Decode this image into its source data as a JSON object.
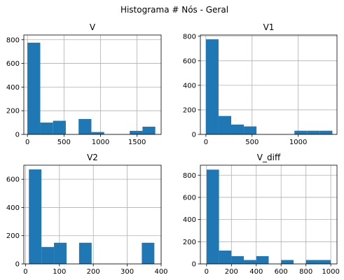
{
  "figure": {
    "suptitle": "Histograma # Nós - Geral"
  },
  "chart_data": [
    {
      "type": "bar",
      "title": "V",
      "xlabel": "",
      "ylabel": "",
      "xlim": [
        -50,
        1830
      ],
      "ylim": [
        0,
        840
      ],
      "xticks": [
        0,
        500,
        1000,
        1500
      ],
      "yticks": [
        0,
        200,
        400,
        600,
        800
      ],
      "bar_color": "#1f77b4",
      "grid": true,
      "bins": [
        {
          "x0": 0,
          "x1": 175,
          "count": 775
        },
        {
          "x0": 175,
          "x1": 350,
          "count": 100
        },
        {
          "x0": 350,
          "x1": 525,
          "count": 115
        },
        {
          "x0": 525,
          "x1": 700,
          "count": 0
        },
        {
          "x0": 700,
          "x1": 875,
          "count": 130
        },
        {
          "x0": 875,
          "x1": 1050,
          "count": 20
        },
        {
          "x0": 1050,
          "x1": 1225,
          "count": 0
        },
        {
          "x0": 1225,
          "x1": 1400,
          "count": 0
        },
        {
          "x0": 1400,
          "x1": 1575,
          "count": 30
        },
        {
          "x0": 1575,
          "x1": 1750,
          "count": 65
        }
      ]
    },
    {
      "type": "bar",
      "title": "V1",
      "xlabel": "",
      "ylabel": "",
      "xlim": [
        -60,
        1420
      ],
      "ylim": [
        0,
        810
      ],
      "xticks": [
        0,
        500,
        1000
      ],
      "yticks": [
        0,
        200,
        400,
        600,
        800
      ],
      "bar_color": "#1f77b4",
      "grid": true,
      "bins": [
        {
          "x0": 0,
          "x1": 137,
          "count": 775
        },
        {
          "x0": 137,
          "x1": 274,
          "count": 150
        },
        {
          "x0": 274,
          "x1": 411,
          "count": 80
        },
        {
          "x0": 411,
          "x1": 548,
          "count": 65
        },
        {
          "x0": 548,
          "x1": 685,
          "count": 0
        },
        {
          "x0": 685,
          "x1": 822,
          "count": 0
        },
        {
          "x0": 822,
          "x1": 959,
          "count": 0
        },
        {
          "x0": 959,
          "x1": 1096,
          "count": 30
        },
        {
          "x0": 1096,
          "x1": 1233,
          "count": 30
        },
        {
          "x0": 1233,
          "x1": 1370,
          "count": 30
        }
      ]
    },
    {
      "type": "bar",
      "title": "V2",
      "xlabel": "",
      "ylabel": "",
      "xlim": [
        -5,
        400
      ],
      "ylim": [
        0,
        700
      ],
      "xticks": [
        0,
        100,
        200,
        300,
        400
      ],
      "yticks": [
        0,
        200,
        400,
        600
      ],
      "bar_color": "#1f77b4",
      "grid": true,
      "bins": [
        {
          "x0": 10,
          "x1": 47,
          "count": 670
        },
        {
          "x0": 47,
          "x1": 84,
          "count": 120
        },
        {
          "x0": 84,
          "x1": 121,
          "count": 150
        },
        {
          "x0": 121,
          "x1": 158,
          "count": 0
        },
        {
          "x0": 158,
          "x1": 195,
          "count": 150
        },
        {
          "x0": 195,
          "x1": 232,
          "count": 0
        },
        {
          "x0": 232,
          "x1": 269,
          "count": 0
        },
        {
          "x0": 269,
          "x1": 306,
          "count": 0
        },
        {
          "x0": 306,
          "x1": 343,
          "count": 0
        },
        {
          "x0": 343,
          "x1": 380,
          "count": 150
        }
      ]
    },
    {
      "type": "bar",
      "title": "V_diff",
      "xlabel": "",
      "ylabel": "",
      "xlim": [
        -50,
        1050
      ],
      "ylim": [
        0,
        890
      ],
      "xticks": [
        0,
        200,
        400,
        600,
        800,
        1000
      ],
      "yticks": [
        0,
        200,
        400,
        600,
        800
      ],
      "bar_color": "#1f77b4",
      "grid": true,
      "bins": [
        {
          "x0": 0,
          "x1": 100,
          "count": 850
        },
        {
          "x0": 100,
          "x1": 200,
          "count": 120
        },
        {
          "x0": 200,
          "x1": 300,
          "count": 70
        },
        {
          "x0": 300,
          "x1": 400,
          "count": 35
        },
        {
          "x0": 400,
          "x1": 500,
          "count": 70
        },
        {
          "x0": 500,
          "x1": 600,
          "count": 0
        },
        {
          "x0": 600,
          "x1": 700,
          "count": 35
        },
        {
          "x0": 700,
          "x1": 800,
          "count": 0
        },
        {
          "x0": 800,
          "x1": 900,
          "count": 35
        },
        {
          "x0": 900,
          "x1": 1000,
          "count": 35
        }
      ]
    }
  ]
}
